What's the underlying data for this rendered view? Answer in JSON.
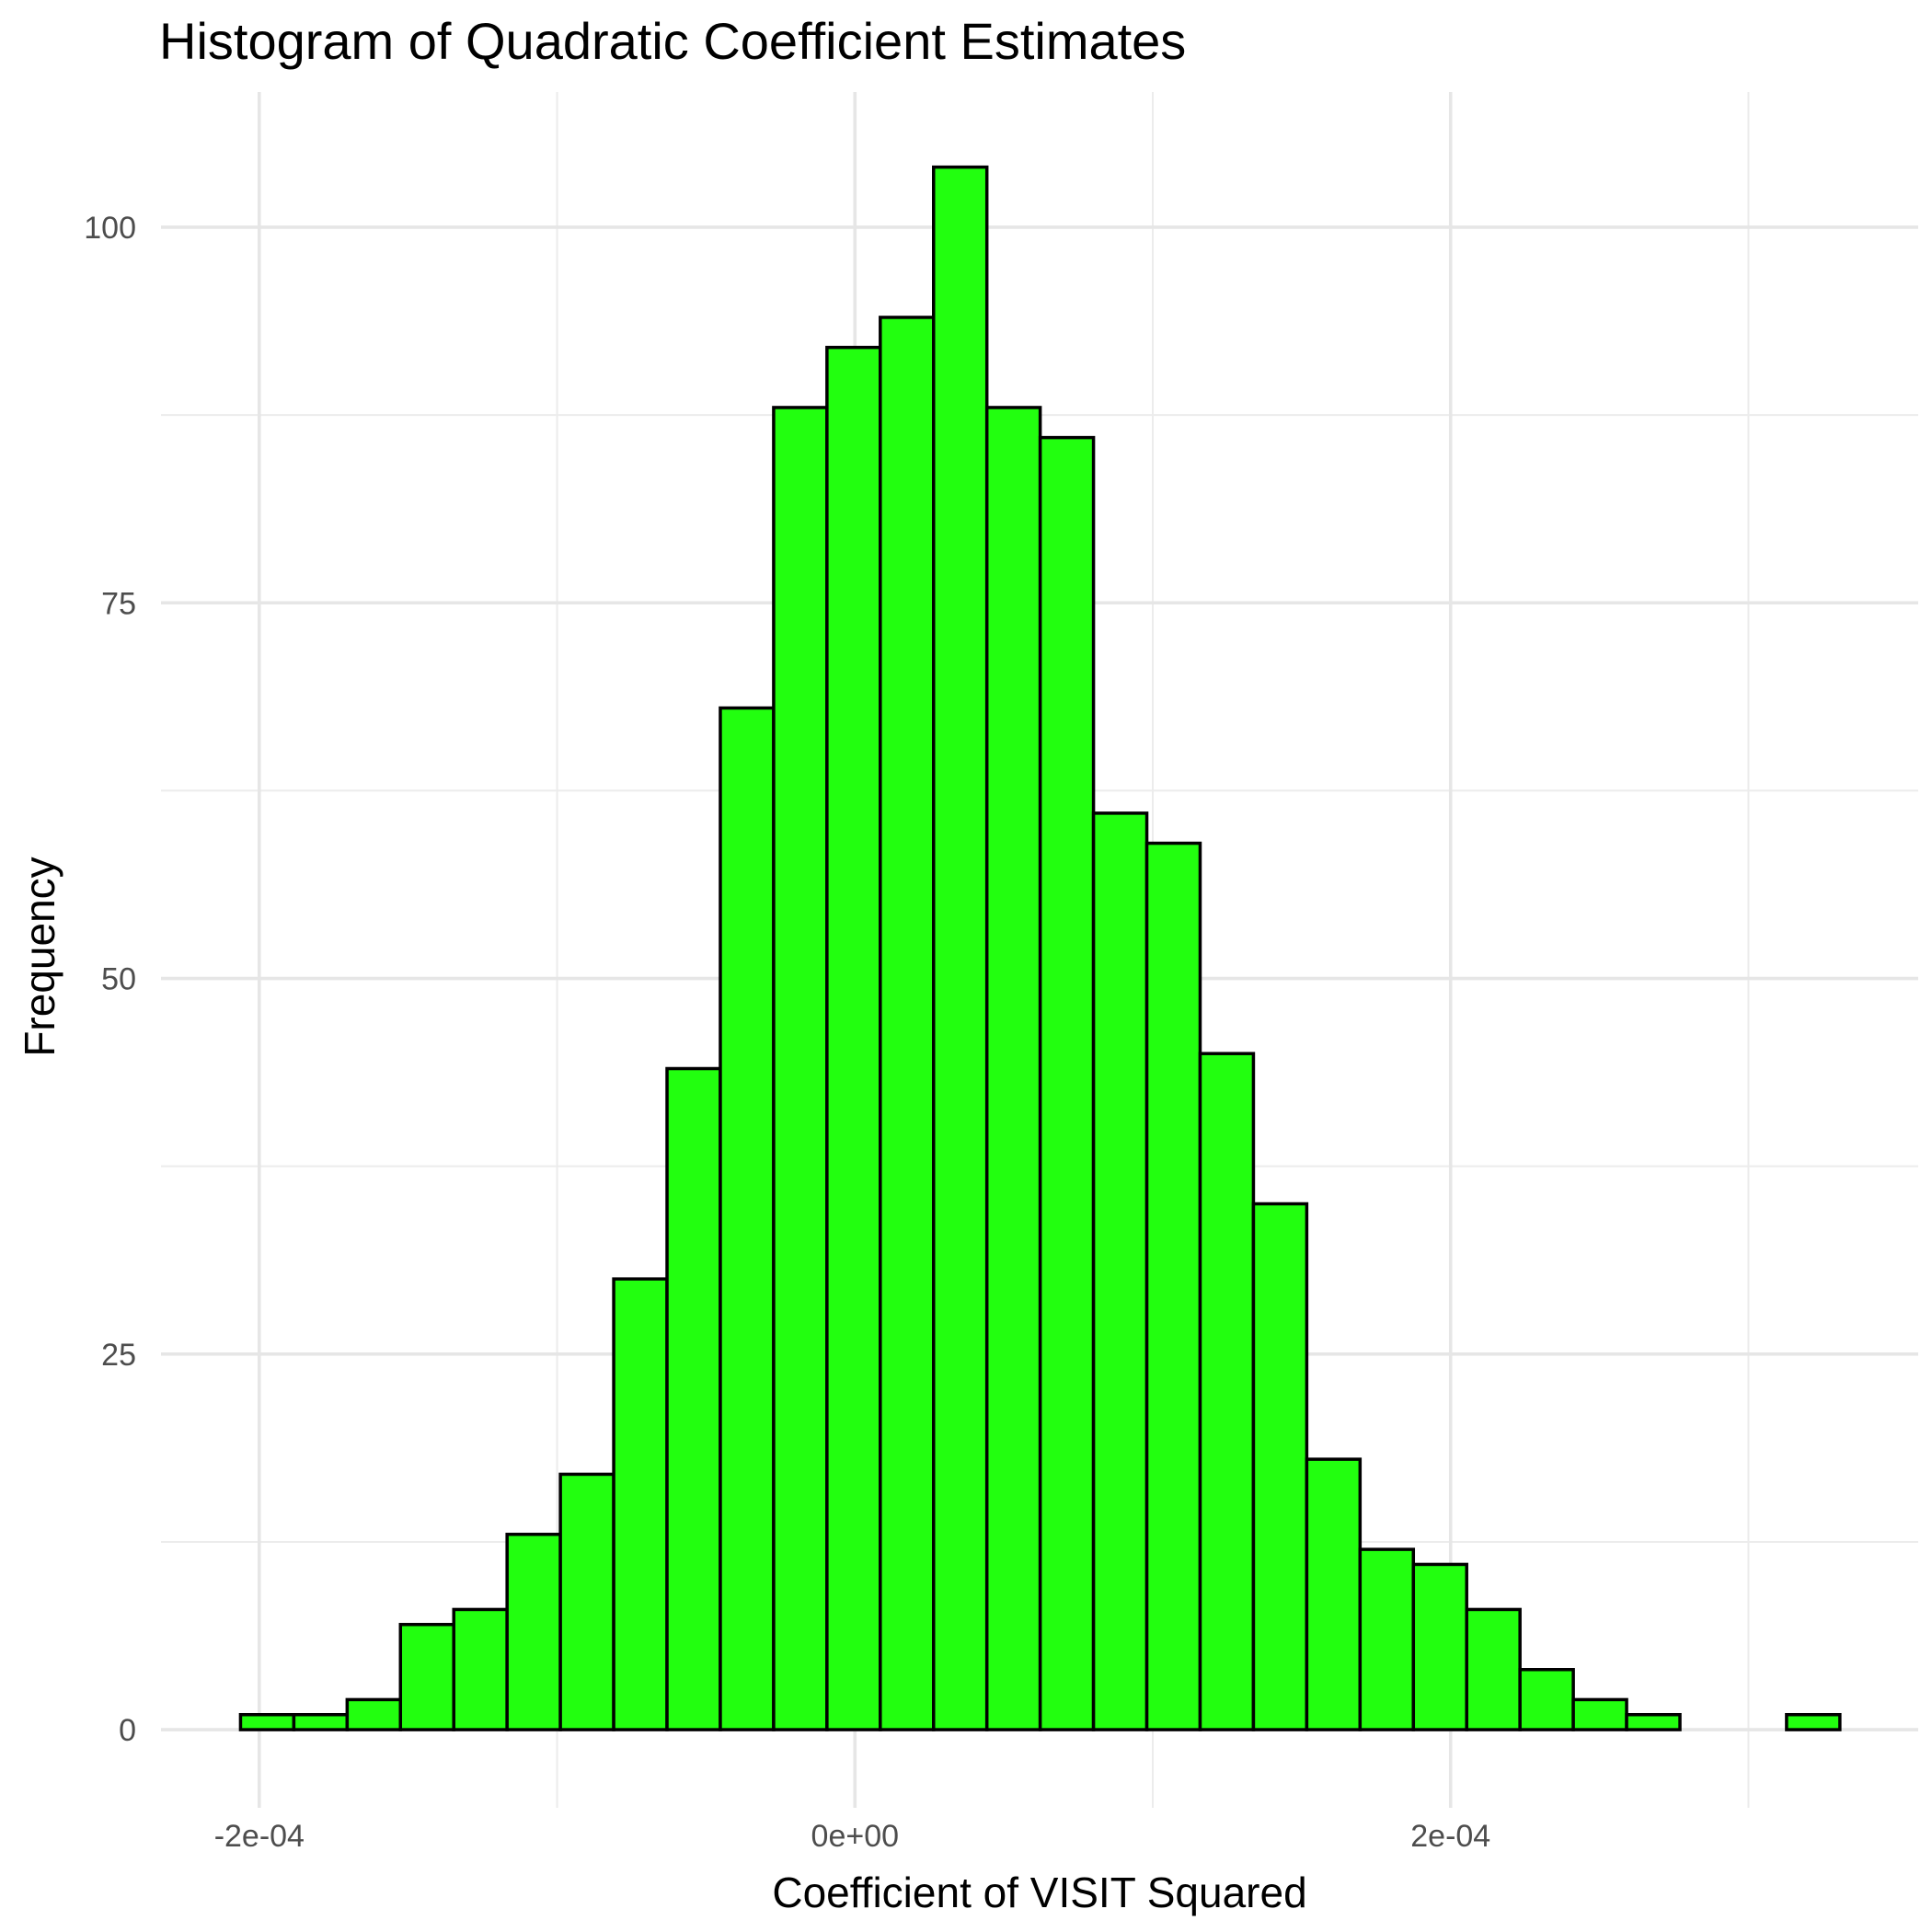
{
  "chart_data": {
    "type": "bar",
    "title": "Histogram of Quadratic Coefficient Estimates",
    "xlabel": "Coefficient of VISIT Squared",
    "ylabel": "Frequency",
    "bar_fill": "#22ff0f",
    "bar_outline": "#000000",
    "grid": true,
    "xlim": [
      -0.000233,
      0.000357
    ],
    "ylim": [
      -5.2,
      109
    ],
    "x_ticks": [
      {
        "value": -0.0002,
        "label": "-2e-04"
      },
      {
        "value": 0,
        "label": "0e+00"
      },
      {
        "value": 0.0002,
        "label": "2e-04"
      }
    ],
    "x_minor_ticks": [
      -0.0001,
      0.0001,
      0.0003
    ],
    "y_ticks": [
      {
        "value": 0,
        "label": "0"
      },
      {
        "value": 25,
        "label": "25"
      },
      {
        "value": 50,
        "label": "50"
      },
      {
        "value": 75,
        "label": "75"
      },
      {
        "value": 100,
        "label": "100"
      }
    ],
    "y_minor_ticks": [
      12.5,
      37.5,
      62.5,
      87.5
    ],
    "bin_width": 1.79e-05,
    "bins": [
      {
        "x0": -0.0002063,
        "count": 1
      },
      {
        "x0": -0.0001884,
        "count": 1
      },
      {
        "x0": -0.0001705,
        "count": 2
      },
      {
        "x0": -0.0001526,
        "count": 7
      },
      {
        "x0": -0.0001347,
        "count": 8
      },
      {
        "x0": -0.0001168,
        "count": 13
      },
      {
        "x0": -9.89e-05,
        "count": 17
      },
      {
        "x0": -8.1e-05,
        "count": 30
      },
      {
        "x0": -6.31e-05,
        "count": 44
      },
      {
        "x0": -4.52e-05,
        "count": 68
      },
      {
        "x0": -2.73e-05,
        "count": 88
      },
      {
        "x0": -9.4e-06,
        "count": 92
      },
      {
        "x0": 8.5e-06,
        "count": 94
      },
      {
        "x0": 2.64e-05,
        "count": 104
      },
      {
        "x0": 4.43e-05,
        "count": 88
      },
      {
        "x0": 6.22e-05,
        "count": 86
      },
      {
        "x0": 8.01e-05,
        "count": 61
      },
      {
        "x0": 9.8e-05,
        "count": 59
      },
      {
        "x0": 0.0001159,
        "count": 45
      },
      {
        "x0": 0.0001338,
        "count": 35
      },
      {
        "x0": 0.0001517,
        "count": 18
      },
      {
        "x0": 0.0001696,
        "count": 12
      },
      {
        "x0": 0.0001875,
        "count": 11
      },
      {
        "x0": 0.0002054,
        "count": 8
      },
      {
        "x0": 0.0002233,
        "count": 4
      },
      {
        "x0": 0.0002412,
        "count": 2
      },
      {
        "x0": 0.0002591,
        "count": 1
      },
      {
        "x0": 0.000277,
        "count": 0
      },
      {
        "x0": 0.0002949,
        "count": 0
      },
      {
        "x0": 0.0003128,
        "count": 1
      }
    ]
  }
}
